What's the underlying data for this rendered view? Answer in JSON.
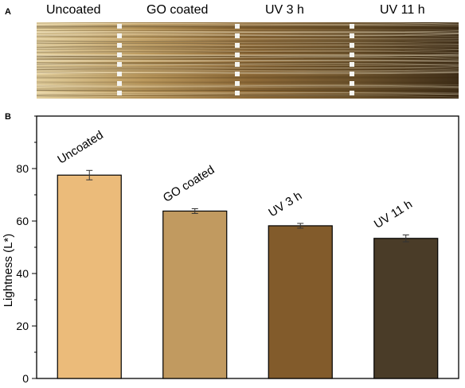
{
  "panel_a": {
    "label": "A",
    "captions": [
      "Uncoated",
      "GO coated",
      "UV 3 h",
      "UV 11 h"
    ]
  },
  "panel_b": {
    "label": "B"
  },
  "colors": {
    "hair": [
      "#e2ce9c",
      "#bc9a5e",
      "#8e6a38",
      "#6c522c"
    ],
    "bars": [
      "#ebbb7a",
      "#c19a60",
      "#825b2b",
      "#4a3c28"
    ]
  },
  "chart_data": {
    "type": "bar",
    "categories": [
      "Uncoated",
      "GO coated",
      "UV 3 h",
      "UV 11 h"
    ],
    "values": [
      77.5,
      63.8,
      58.2,
      53.4
    ],
    "errors": [
      1.8,
      0.9,
      0.9,
      1.3
    ],
    "ylabel": "Lightness (L*)",
    "ylim": [
      0,
      100
    ],
    "yticks": [
      0,
      20,
      40,
      60,
      80
    ],
    "grid": false
  }
}
